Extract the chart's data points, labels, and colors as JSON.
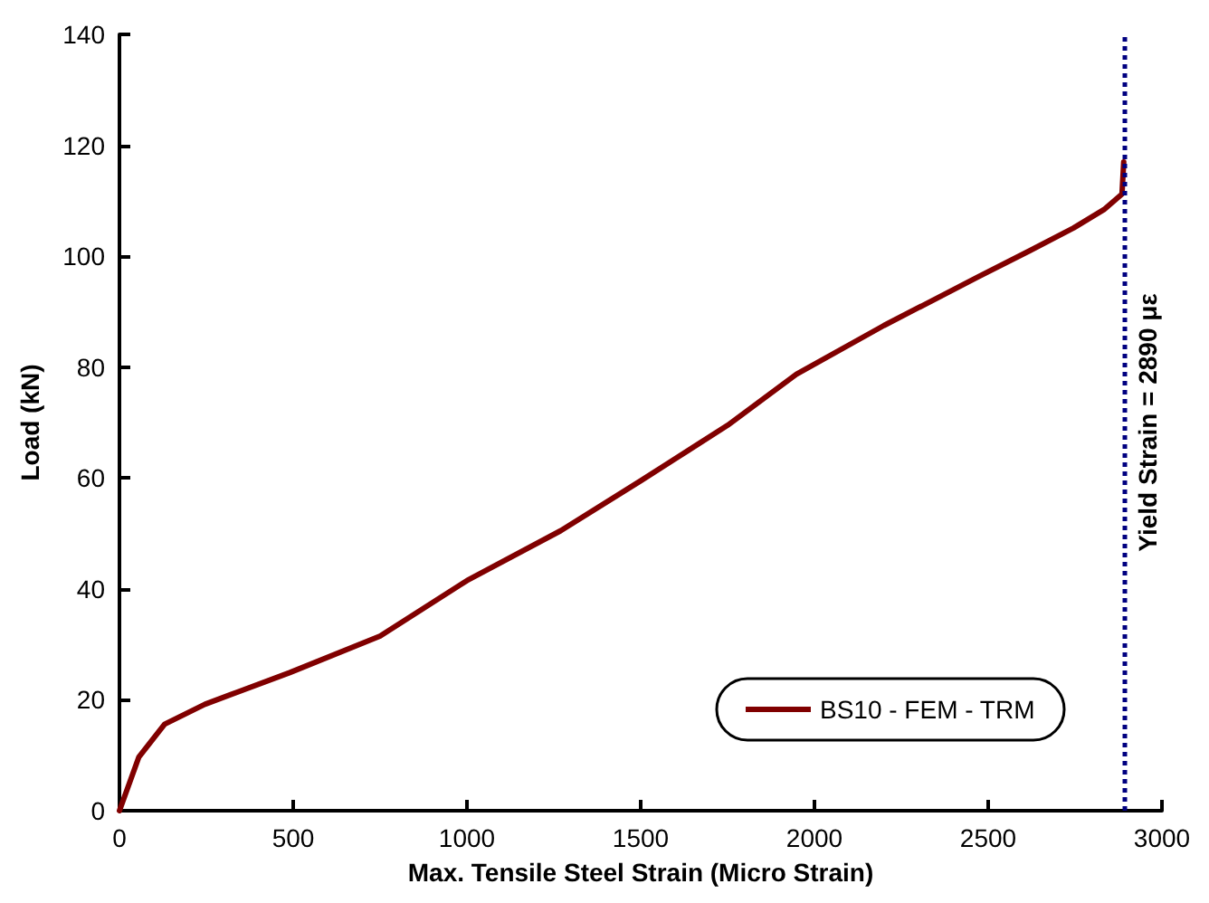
{
  "chart_data": {
    "type": "line",
    "xlabel": "Max. Tensile Steel Strain (Micro Strain)",
    "ylabel": "Load (kN)",
    "x": [
      0,
      56,
      130,
      246,
      490,
      750,
      1000,
      1270,
      1500,
      1750,
      1948,
      2200,
      2469,
      2620,
      2746,
      2833,
      2885,
      2890
    ],
    "series": [
      {
        "name": "BS10 - FEM - TRM",
        "color": "#800000",
        "values": [
          0,
          9.7,
          15.6,
          19.2,
          24.9,
          31.5,
          41.5,
          50.5,
          59.5,
          69.5,
          78.7,
          87.5,
          96.2,
          101,
          105.1,
          108.4,
          111.2,
          117
        ]
      }
    ],
    "xlim": [
      0,
      3000
    ],
    "xticks": [
      0,
      500,
      1000,
      1500,
      2000,
      2500,
      3000
    ],
    "ylim": [
      0,
      140
    ],
    "yticks": [
      0,
      20,
      40,
      60,
      80,
      100,
      120,
      140
    ],
    "ref_lines": [
      {
        "axis": "x",
        "value": 2890,
        "label": "Yield Strain = 2890 με",
        "color": "#000080",
        "line_style": "dotted"
      }
    ],
    "legend": "bottom right",
    "grid": false,
    "marker": "none",
    "line_style": "solid"
  }
}
